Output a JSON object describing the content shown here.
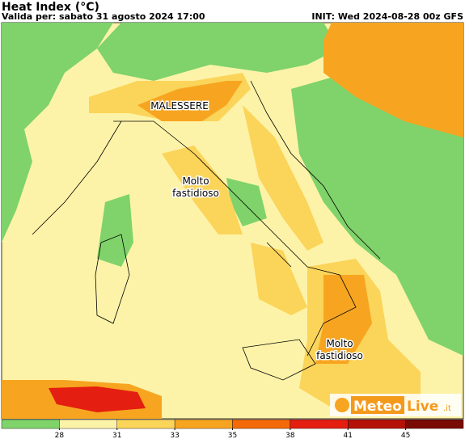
{
  "header": {
    "title": "Heat Index (°C)",
    "valid": "Valida per: sabato 31 agosto 2024 17:00",
    "init": "INIT: Wed 2024-08-28 00z GFS"
  },
  "annotations": [
    {
      "lines": [
        "MALESSERE"
      ]
    },
    {
      "lines": [
        "Molto",
        "fastidioso"
      ]
    },
    {
      "lines": [
        "Molto",
        "fastidioso"
      ]
    }
  ],
  "colorbar": {
    "ticks": [
      28,
      31,
      33,
      35,
      38,
      41,
      45
    ],
    "colors": [
      "#7fd36a",
      "#fdf3a8",
      "#fbd45a",
      "#f7a520",
      "#f46a08",
      "#e41e10",
      "#b41208",
      "#7a0a04"
    ]
  },
  "logo": {
    "part1": "Meteo",
    "part2": "Live",
    "part3": ".it"
  }
}
